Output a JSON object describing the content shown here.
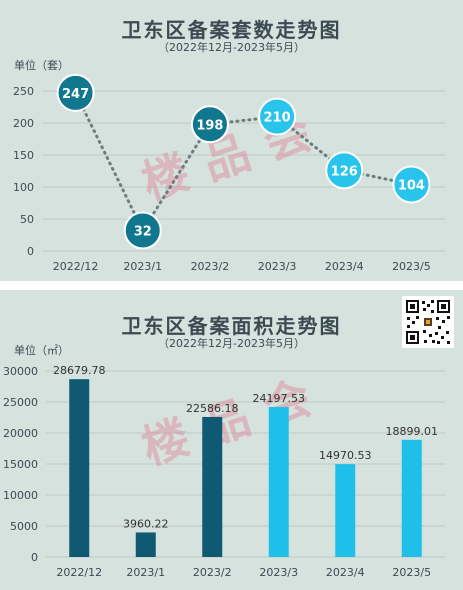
{
  "chart_data": [
    {
      "type": "line",
      "title": "卫东区备案套数走势图",
      "subtitle": "（2022年12月-2023年5月）",
      "unit_label": "单位（套）",
      "categories": [
        "2022/12",
        "2023/1",
        "2023/2",
        "2023/3",
        "2023/4",
        "2023/5"
      ],
      "series": [
        {
          "values": [
            247,
            32,
            198,
            210,
            126,
            104
          ]
        }
      ],
      "yticks": [
        0,
        50,
        100,
        150,
        200,
        250
      ],
      "ylim": [
        0,
        250
      ],
      "grid": true,
      "marker_colors": [
        "#11778f",
        "#11778f",
        "#11778f",
        "#28c4ec",
        "#28c4ec",
        "#28c4ec"
      ]
    },
    {
      "type": "bar",
      "title": "卫东区备案面积走势图",
      "subtitle": "（2022年12月-2023年5月）",
      "unit_label": "单位（㎡）",
      "categories": [
        "2022/12",
        "2023/1",
        "2023/2",
        "2023/3",
        "2023/4",
        "2023/5"
      ],
      "values": [
        28679.78,
        3960.22,
        22586.18,
        24197.53,
        14970.53,
        18899.01
      ],
      "value_labels": [
        "28679.78",
        "3960.22",
        "22586.18",
        "24197.53",
        "14970.53",
        "18899.01"
      ],
      "yticks": [
        0,
        5000,
        10000,
        15000,
        20000,
        25000,
        30000
      ],
      "ylim": [
        0,
        30000
      ],
      "grid": true,
      "bar_colors": [
        "#0f5a72",
        "#0f5a72",
        "#0f5a72",
        "#1ec0ea",
        "#1ec0ea",
        "#1ec0ea"
      ]
    }
  ],
  "watermark": "楼品会"
}
